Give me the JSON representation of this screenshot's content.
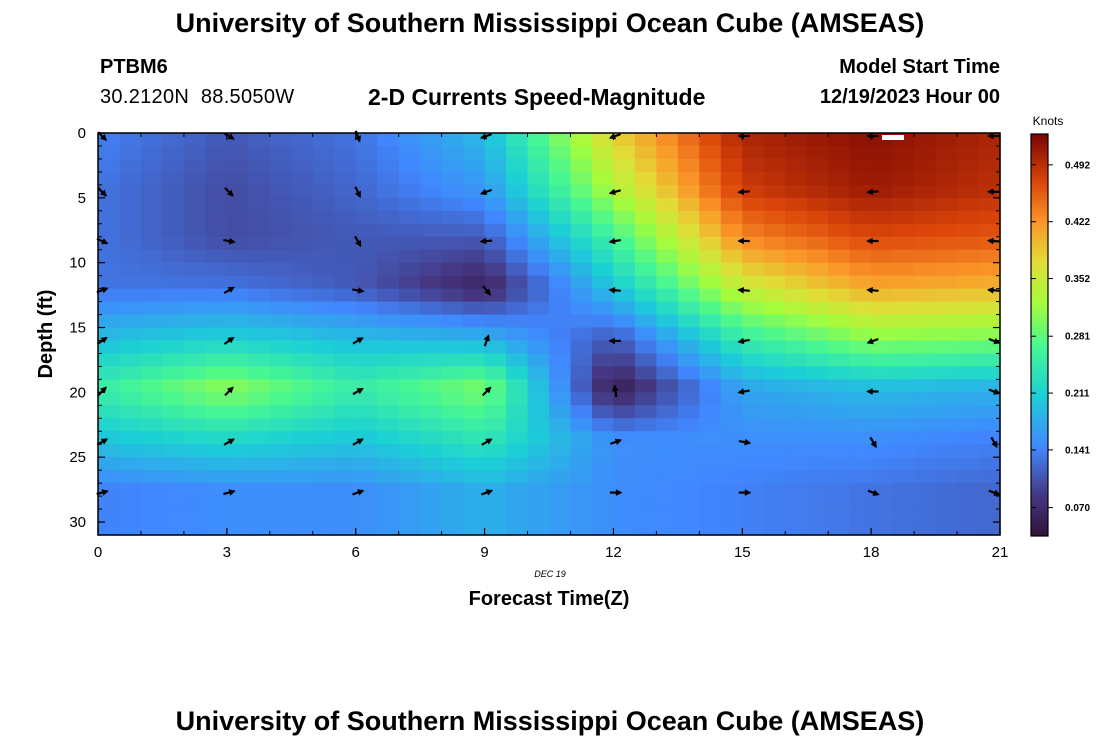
{
  "header": {
    "title": "University of Southern Mississippi Ocean Cube (AMSEAS)",
    "station_id": "PTBM6",
    "coordinates": "30.2120N  88.5050W",
    "plot_title": "2-D Currents Speed-Magnitude",
    "model_start_label": "Model Start Time",
    "model_start_value": "12/19/2023 Hour 00"
  },
  "footer": {
    "title": "University of Southern Mississippi Ocean Cube (AMSEAS)"
  },
  "chart_data": {
    "type": "heatmap",
    "title": "2-D Currents Speed-Magnitude",
    "xlabel": "Forecast Time(Z)",
    "ylabel": "Depth (ft)",
    "date_label": "DEC 19",
    "xlim": [
      0,
      21
    ],
    "ylim": [
      0,
      31
    ],
    "x_ticks": [
      0,
      3,
      6,
      9,
      12,
      15,
      18,
      21
    ],
    "y_ticks": [
      0,
      5,
      10,
      15,
      20,
      25,
      30
    ],
    "depths_ft": [
      0,
      4.3,
      8.1,
      11.9,
      15.8,
      19.7,
      23.6,
      27.5
    ],
    "times_h": [
      0,
      3,
      6,
      9,
      12,
      15,
      18,
      21
    ],
    "speed_knots": [
      [
        0.14,
        0.11,
        0.13,
        0.19,
        0.38,
        0.5,
        0.52,
        0.5
      ],
      [
        0.13,
        0.1,
        0.12,
        0.16,
        0.33,
        0.48,
        0.51,
        0.49
      ],
      [
        0.13,
        0.1,
        0.11,
        0.11,
        0.26,
        0.43,
        0.47,
        0.46
      ],
      [
        0.13,
        0.13,
        0.11,
        0.06,
        0.2,
        0.35,
        0.41,
        0.4
      ],
      [
        0.19,
        0.21,
        0.19,
        0.18,
        0.11,
        0.25,
        0.31,
        0.3
      ],
      [
        0.25,
        0.31,
        0.25,
        0.3,
        0.05,
        0.17,
        0.19,
        0.18
      ],
      [
        0.2,
        0.22,
        0.2,
        0.24,
        0.15,
        0.15,
        0.15,
        0.14
      ],
      [
        0.14,
        0.15,
        0.15,
        0.18,
        0.15,
        0.14,
        0.13,
        0.12
      ]
    ],
    "current_direction_deg": [
      [
        135,
        120,
        160,
        250,
        250,
        270,
        270,
        270
      ],
      [
        135,
        135,
        155,
        250,
        255,
        265,
        265,
        270
      ],
      [
        115,
        100,
        150,
        265,
        260,
        270,
        270,
        275
      ],
      [
        70,
        60,
        100,
        140,
        275,
        275,
        275,
        275
      ],
      [
        55,
        55,
        60,
        20,
        270,
        260,
        250,
        110
      ],
      [
        45,
        45,
        60,
        45,
        350,
        260,
        270,
        110
      ],
      [
        60,
        60,
        60,
        60,
        70,
        100,
        150,
        150
      ],
      [
        75,
        75,
        70,
        70,
        90,
        90,
        110,
        110
      ]
    ],
    "colorbar": {
      "label": "Knots",
      "ticks": [
        0.07,
        0.141,
        0.211,
        0.281,
        0.352,
        0.422,
        0.492
      ],
      "tick_labels": [
        "0.070",
        "0.141",
        "0.211",
        "0.281",
        "0.352",
        "0.422",
        "0.492"
      ],
      "range": [
        0.035,
        0.53
      ]
    }
  }
}
